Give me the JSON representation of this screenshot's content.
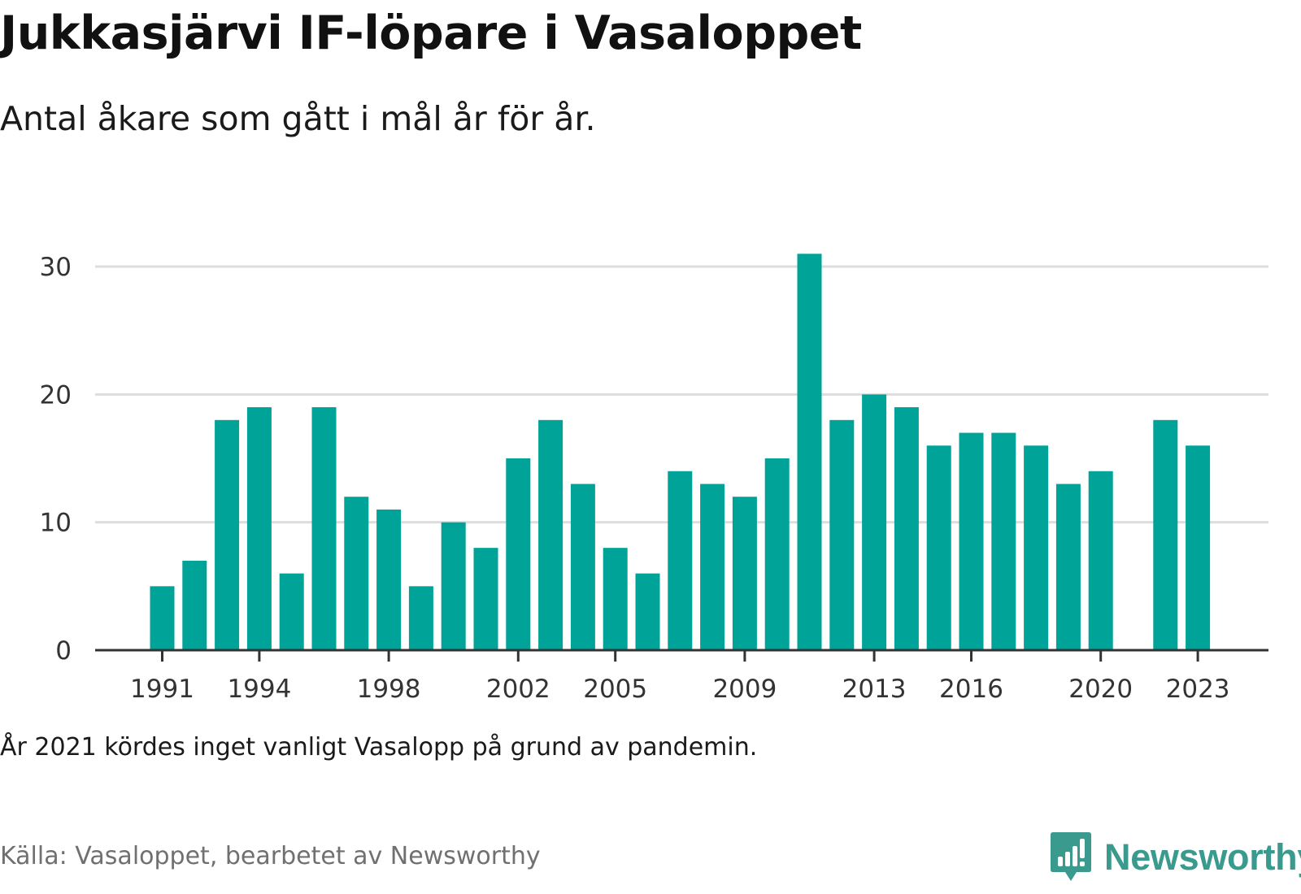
{
  "title": "Jukkasjärvi IF-löpare i Vasaloppet",
  "subtitle": "Antal åkare som gått i mål år för år.",
  "note": "År 2021 kördes inget vanligt Vasalopp på grund av pandemin.",
  "source": "Källa: Vasaloppet, bearbetet av Newsworthy",
  "brand": {
    "name": "Newsworthy",
    "color": "#3a9a8e",
    "icon": "newsworthy-logo-icon"
  },
  "colors": {
    "bar": "#00a398",
    "grid": "#dddddd",
    "axis": "#333333"
  },
  "chart_data": {
    "type": "bar",
    "x": [
      1991,
      1992,
      1993,
      1994,
      1995,
      1996,
      1997,
      1998,
      1999,
      2000,
      2001,
      2002,
      2003,
      2004,
      2005,
      2006,
      2007,
      2008,
      2009,
      2010,
      2011,
      2012,
      2013,
      2014,
      2015,
      2016,
      2017,
      2018,
      2019,
      2020,
      2021,
      2022,
      2023
    ],
    "values": [
      5,
      7,
      18,
      19,
      6,
      19,
      12,
      11,
      5,
      10,
      8,
      15,
      18,
      13,
      8,
      6,
      14,
      13,
      12,
      15,
      31,
      18,
      20,
      19,
      16,
      17,
      17,
      16,
      13,
      14,
      null,
      18,
      16
    ],
    "x_tick_labels": [
      "1991",
      "1994",
      "1998",
      "2002",
      "2005",
      "2009",
      "2013",
      "2016",
      "2020",
      "2023"
    ],
    "y_ticks": [
      0,
      10,
      20,
      30
    ],
    "ylim": [
      0,
      31
    ],
    "xlabel": "",
    "ylabel": "",
    "grid": true,
    "legend": "none"
  }
}
